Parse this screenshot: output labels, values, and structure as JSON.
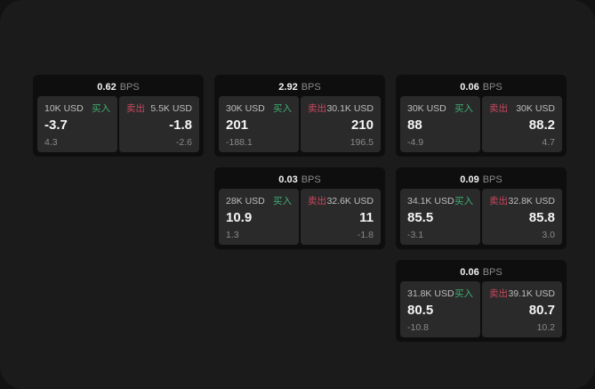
{
  "colors": {
    "buy": "#3fae73",
    "sell": "#c9475f"
  },
  "cards": [
    {
      "bps_value": "0.62",
      "bps_unit": "BPS",
      "grid": {
        "col": 1,
        "row": 1
      },
      "buy": {
        "amount": "10K USD",
        "side_label": "买入",
        "price": "-3.7",
        "delta": "4.3"
      },
      "sell": {
        "side_label": "卖出",
        "amount": "5.5K USD",
        "price": "-1.8",
        "delta": "-2.6"
      }
    },
    {
      "bps_value": "2.92",
      "bps_unit": "BPS",
      "grid": {
        "col": 2,
        "row": 1
      },
      "buy": {
        "amount": "30K USD",
        "side_label": "买入",
        "price": "201",
        "delta": "-188.1"
      },
      "sell": {
        "side_label": "卖出",
        "amount": "30.1K USD",
        "price": "210",
        "delta": "196.5"
      }
    },
    {
      "bps_value": "0.06",
      "bps_unit": "BPS",
      "grid": {
        "col": 3,
        "row": 1
      },
      "buy": {
        "amount": "30K USD",
        "side_label": "买入",
        "price": "88",
        "delta": "-4.9"
      },
      "sell": {
        "side_label": "卖出",
        "amount": "30K USD",
        "price": "88.2",
        "delta": "4.7"
      }
    },
    {
      "bps_value": "0.03",
      "bps_unit": "BPS",
      "grid": {
        "col": 2,
        "row": 2
      },
      "buy": {
        "amount": "28K USD",
        "side_label": "买入",
        "price": "10.9",
        "delta": "1.3"
      },
      "sell": {
        "side_label": "卖出",
        "amount": "32.6K USD",
        "price": "11",
        "delta": "-1.8"
      }
    },
    {
      "bps_value": "0.09",
      "bps_unit": "BPS",
      "grid": {
        "col": 3,
        "row": 2
      },
      "buy": {
        "amount": "34.1K USD",
        "side_label": "买入",
        "price": "85.5",
        "delta": "-3.1"
      },
      "sell": {
        "side_label": "卖出",
        "amount": "32.8K USD",
        "price": "85.8",
        "delta": "3.0"
      }
    },
    {
      "bps_value": "0.06",
      "bps_unit": "BPS",
      "grid": {
        "col": 3,
        "row": 3
      },
      "buy": {
        "amount": "31.8K USD",
        "side_label": "买入",
        "price": "80.5",
        "delta": "-10.8"
      },
      "sell": {
        "side_label": "卖出",
        "amount": "39.1K USD",
        "price": "80.7",
        "delta": "10.2"
      }
    }
  ]
}
